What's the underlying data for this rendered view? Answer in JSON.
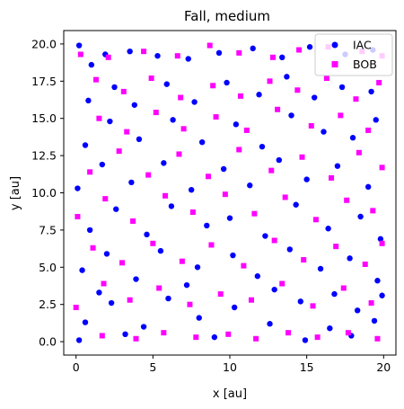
{
  "chart_data": {
    "type": "scatter",
    "title": "Fall, medium",
    "xlabel": "x [au]",
    "ylabel": "y [au]",
    "xlim": [
      -0.8,
      20.8
    ],
    "ylim": [
      -0.9,
      20.9
    ],
    "xticks": [
      0,
      5,
      10,
      15,
      20
    ],
    "xtick_labels": [
      "0",
      "5",
      "10",
      "15",
      "20"
    ],
    "yticks": [
      0.0,
      2.5,
      5.0,
      7.5,
      10.0,
      12.5,
      15.0,
      17.5,
      20.0
    ],
    "ytick_labels": [
      "0.0",
      "2.5",
      "5.0",
      "7.5",
      "10.0",
      "12.5",
      "15.0",
      "17.5",
      "20.0"
    ],
    "grid": false,
    "legend_position": "top-right",
    "series": [
      {
        "name": "IAC",
        "color": "#0000ff",
        "marker": "circle",
        "points": [
          [
            0.2,
            19.9
          ],
          [
            1.0,
            18.6
          ],
          [
            1.9,
            19.3
          ],
          [
            3.5,
            19.5
          ],
          [
            5.3,
            19.2
          ],
          [
            7.3,
            19.0
          ],
          [
            9.3,
            19.4
          ],
          [
            11.5,
            19.7
          ],
          [
            13.4,
            19.1
          ],
          [
            15.2,
            19.8
          ],
          [
            17.5,
            19.3
          ],
          [
            19.3,
            19.6
          ],
          [
            0.8,
            16.2
          ],
          [
            2.5,
            17.1
          ],
          [
            3.8,
            15.9
          ],
          [
            5.9,
            17.3
          ],
          [
            7.7,
            16.1
          ],
          [
            9.8,
            17.4
          ],
          [
            11.9,
            16.6
          ],
          [
            13.7,
            17.8
          ],
          [
            15.5,
            16.4
          ],
          [
            17.3,
            17.1
          ],
          [
            19.2,
            16.8
          ],
          [
            0.6,
            13.2
          ],
          [
            2.2,
            14.8
          ],
          [
            4.1,
            13.6
          ],
          [
            6.3,
            14.9
          ],
          [
            8.2,
            13.4
          ],
          [
            10.4,
            14.6
          ],
          [
            12.1,
            13.1
          ],
          [
            14.0,
            15.2
          ],
          [
            16.1,
            14.1
          ],
          [
            18.0,
            13.7
          ],
          [
            19.5,
            14.9
          ],
          [
            0.1,
            10.3
          ],
          [
            1.7,
            11.9
          ],
          [
            3.6,
            10.7
          ],
          [
            5.7,
            12.0
          ],
          [
            7.5,
            10.2
          ],
          [
            9.6,
            11.6
          ],
          [
            11.3,
            10.5
          ],
          [
            13.2,
            12.2
          ],
          [
            15.0,
            10.9
          ],
          [
            17.0,
            11.8
          ],
          [
            19.0,
            10.4
          ],
          [
            0.9,
            7.5
          ],
          [
            2.6,
            8.9
          ],
          [
            4.6,
            7.2
          ],
          [
            6.2,
            9.1
          ],
          [
            8.5,
            7.8
          ],
          [
            10.0,
            8.3
          ],
          [
            12.3,
            7.1
          ],
          [
            14.3,
            9.2
          ],
          [
            16.4,
            7.6
          ],
          [
            18.5,
            8.4
          ],
          [
            19.8,
            6.9
          ],
          [
            0.4,
            4.8
          ],
          [
            2.0,
            5.9
          ],
          [
            3.9,
            4.2
          ],
          [
            5.5,
            6.1
          ],
          [
            7.9,
            5.0
          ],
          [
            10.2,
            5.8
          ],
          [
            11.8,
            4.4
          ],
          [
            13.9,
            6.2
          ],
          [
            15.9,
            4.9
          ],
          [
            17.8,
            5.6
          ],
          [
            19.6,
            4.1
          ],
          [
            0.6,
            1.3
          ],
          [
            2.3,
            2.6
          ],
          [
            4.4,
            1.0
          ],
          [
            6.0,
            2.9
          ],
          [
            8.0,
            1.6
          ],
          [
            10.3,
            2.3
          ],
          [
            12.6,
            1.2
          ],
          [
            14.6,
            2.7
          ],
          [
            16.5,
            0.9
          ],
          [
            18.3,
            2.1
          ],
          [
            19.4,
            1.4
          ],
          [
            0.2,
            0.1
          ],
          [
            3.2,
            0.5
          ],
          [
            9.0,
            0.3
          ],
          [
            14.9,
            0.1
          ],
          [
            17.9,
            0.4
          ],
          [
            1.5,
            3.3
          ],
          [
            7.2,
            3.8
          ],
          [
            12.9,
            3.5
          ],
          [
            16.8,
            3.2
          ],
          [
            19.9,
            3.1
          ]
        ]
      },
      {
        "name": "BOB",
        "color": "#ff00ff",
        "marker": "square",
        "points": [
          [
            0.3,
            19.3
          ],
          [
            2.1,
            19.1
          ],
          [
            4.4,
            19.5
          ],
          [
            6.6,
            19.2
          ],
          [
            8.7,
            19.9
          ],
          [
            10.6,
            19.4
          ],
          [
            12.8,
            19.1
          ],
          [
            14.5,
            19.6
          ],
          [
            16.4,
            19.8
          ],
          [
            18.6,
            19.5
          ],
          [
            19.9,
            19.2
          ],
          [
            1.3,
            17.6
          ],
          [
            3.1,
            16.8
          ],
          [
            4.9,
            17.7
          ],
          [
            6.8,
            16.4
          ],
          [
            8.9,
            17.2
          ],
          [
            10.7,
            16.5
          ],
          [
            12.6,
            17.5
          ],
          [
            14.4,
            16.9
          ],
          [
            16.3,
            17.7
          ],
          [
            18.2,
            16.3
          ],
          [
            19.7,
            17.4
          ],
          [
            1.5,
            15.0
          ],
          [
            3.3,
            14.1
          ],
          [
            5.2,
            15.4
          ],
          [
            7.0,
            14.3
          ],
          [
            9.1,
            15.1
          ],
          [
            11.1,
            14.2
          ],
          [
            13.1,
            15.6
          ],
          [
            15.3,
            14.5
          ],
          [
            17.2,
            15.2
          ],
          [
            19.0,
            14.2
          ],
          [
            0.9,
            11.4
          ],
          [
            2.8,
            12.8
          ],
          [
            4.7,
            11.2
          ],
          [
            6.7,
            12.6
          ],
          [
            8.6,
            11.1
          ],
          [
            10.6,
            12.9
          ],
          [
            12.7,
            11.5
          ],
          [
            14.7,
            12.4
          ],
          [
            16.6,
            11.0
          ],
          [
            18.4,
            12.7
          ],
          [
            19.9,
            11.7
          ],
          [
            0.1,
            8.4
          ],
          [
            1.9,
            9.6
          ],
          [
            3.7,
            8.1
          ],
          [
            5.8,
            9.8
          ],
          [
            7.6,
            8.7
          ],
          [
            9.7,
            9.9
          ],
          [
            11.6,
            8.6
          ],
          [
            13.6,
            9.7
          ],
          [
            15.6,
            8.2
          ],
          [
            17.6,
            9.5
          ],
          [
            19.3,
            8.8
          ],
          [
            1.1,
            6.3
          ],
          [
            3.0,
            5.3
          ],
          [
            5.0,
            6.6
          ],
          [
            6.9,
            5.4
          ],
          [
            8.8,
            6.5
          ],
          [
            10.9,
            5.1
          ],
          [
            12.9,
            6.8
          ],
          [
            14.8,
            5.5
          ],
          [
            16.9,
            6.4
          ],
          [
            18.8,
            5.2
          ],
          [
            19.9,
            6.6
          ],
          [
            0.0,
            2.3
          ],
          [
            1.8,
            3.9
          ],
          [
            3.5,
            2.8
          ],
          [
            5.4,
            3.6
          ],
          [
            7.4,
            2.5
          ],
          [
            9.4,
            3.2
          ],
          [
            11.4,
            2.8
          ],
          [
            13.4,
            3.9
          ],
          [
            15.4,
            2.4
          ],
          [
            17.4,
            3.6
          ],
          [
            19.2,
            2.6
          ],
          [
            1.7,
            0.4
          ],
          [
            3.9,
            0.2
          ],
          [
            5.7,
            0.6
          ],
          [
            7.8,
            0.3
          ],
          [
            9.9,
            0.5
          ],
          [
            11.7,
            0.2
          ],
          [
            13.8,
            0.6
          ],
          [
            15.7,
            0.3
          ],
          [
            17.7,
            0.6
          ],
          [
            19.6,
            0.2
          ]
        ]
      }
    ]
  }
}
